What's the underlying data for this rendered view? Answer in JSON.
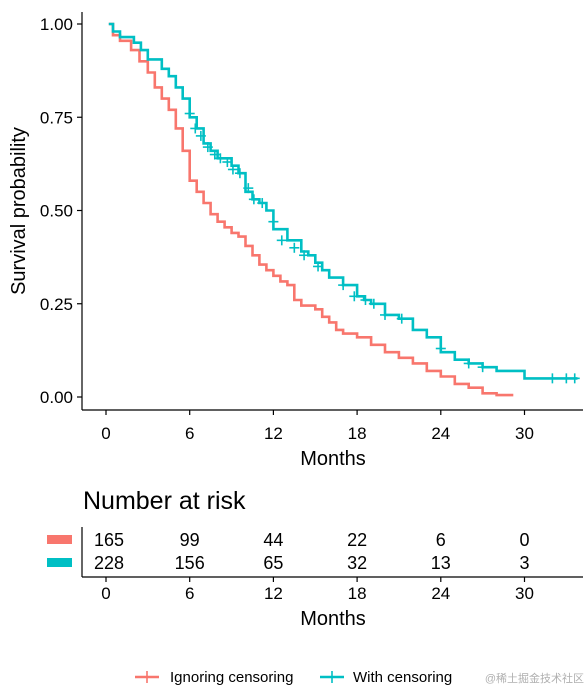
{
  "chart_data": {
    "type": "line",
    "xlabel": "Months",
    "ylabel": "Survival probability",
    "xlim": [
      0,
      34
    ],
    "ylim": [
      0,
      1
    ],
    "x_ticks": [
      0,
      6,
      12,
      18,
      24,
      30
    ],
    "y_ticks": [
      "0.00",
      "0.25",
      "0.50",
      "0.75",
      "1.00"
    ],
    "grid": false,
    "legend_position": "bottom",
    "series": [
      {
        "name": "Ignoring censoring",
        "color": "#F8766D",
        "points": [
          [
            0.2,
            1.0
          ],
          [
            0.5,
            0.97
          ],
          [
            1.0,
            0.955
          ],
          [
            1.8,
            0.93
          ],
          [
            2.4,
            0.9
          ],
          [
            3.0,
            0.87
          ],
          [
            3.5,
            0.83
          ],
          [
            4.0,
            0.8
          ],
          [
            4.5,
            0.77
          ],
          [
            5.0,
            0.72
          ],
          [
            5.5,
            0.66
          ],
          [
            6.0,
            0.58
          ],
          [
            6.5,
            0.55
          ],
          [
            7.0,
            0.52
          ],
          [
            7.5,
            0.49
          ],
          [
            8.0,
            0.47
          ],
          [
            8.5,
            0.455
          ],
          [
            9.0,
            0.44
          ],
          [
            9.5,
            0.43
          ],
          [
            10.0,
            0.405
          ],
          [
            10.5,
            0.38
          ],
          [
            11.0,
            0.355
          ],
          [
            11.5,
            0.34
          ],
          [
            12.0,
            0.325
          ],
          [
            12.5,
            0.31
          ],
          [
            13.0,
            0.3
          ],
          [
            13.5,
            0.26
          ],
          [
            14.0,
            0.245
          ],
          [
            15.0,
            0.235
          ],
          [
            15.5,
            0.215
          ],
          [
            16.0,
            0.2
          ],
          [
            16.5,
            0.18
          ],
          [
            17.0,
            0.17
          ],
          [
            18.0,
            0.16
          ],
          [
            19.0,
            0.14
          ],
          [
            20.0,
            0.12
          ],
          [
            21.0,
            0.105
          ],
          [
            22.0,
            0.09
          ],
          [
            23.0,
            0.07
          ],
          [
            24.0,
            0.055
          ],
          [
            25.0,
            0.035
          ],
          [
            26.0,
            0.025
          ],
          [
            27.0,
            0.01
          ],
          [
            28.0,
            0.005
          ],
          [
            29.2,
            0.005
          ]
        ]
      },
      {
        "name": "With censoring",
        "color": "#00BFC4",
        "points": [
          [
            0.2,
            1.0
          ],
          [
            0.5,
            0.98
          ],
          [
            1.0,
            0.965
          ],
          [
            2.0,
            0.95
          ],
          [
            2.5,
            0.93
          ],
          [
            3.0,
            0.905
          ],
          [
            4.0,
            0.88
          ],
          [
            4.5,
            0.86
          ],
          [
            5.0,
            0.83
          ],
          [
            5.5,
            0.8
          ],
          [
            6.0,
            0.75
          ],
          [
            6.5,
            0.72
          ],
          [
            7.0,
            0.68
          ],
          [
            7.5,
            0.66
          ],
          [
            8.0,
            0.64
          ],
          [
            9.0,
            0.62
          ],
          [
            9.5,
            0.6
          ],
          [
            10.0,
            0.55
          ],
          [
            10.5,
            0.53
          ],
          [
            11.0,
            0.52
          ],
          [
            11.5,
            0.5
          ],
          [
            12.0,
            0.45
          ],
          [
            13.0,
            0.42
          ],
          [
            14.0,
            0.39
          ],
          [
            14.5,
            0.38
          ],
          [
            15.0,
            0.36
          ],
          [
            15.5,
            0.34
          ],
          [
            16.0,
            0.32
          ],
          [
            17.0,
            0.3
          ],
          [
            18.0,
            0.27
          ],
          [
            18.5,
            0.26
          ],
          [
            19.0,
            0.25
          ],
          [
            20.0,
            0.22
          ],
          [
            21.0,
            0.21
          ],
          [
            22.0,
            0.18
          ],
          [
            23.0,
            0.16
          ],
          [
            24.0,
            0.12
          ],
          [
            25.0,
            0.1
          ],
          [
            26.0,
            0.09
          ],
          [
            27.0,
            0.08
          ],
          [
            28.0,
            0.07
          ],
          [
            29.0,
            0.07
          ],
          [
            30.0,
            0.05
          ],
          [
            31.5,
            0.05
          ],
          [
            33.8,
            0.05
          ]
        ],
        "censor_marks": [
          [
            6.0,
            0.76
          ],
          [
            6.4,
            0.72
          ],
          [
            6.8,
            0.7
          ],
          [
            7.3,
            0.67
          ],
          [
            7.8,
            0.65
          ],
          [
            8.2,
            0.64
          ],
          [
            8.7,
            0.63
          ],
          [
            9.1,
            0.61
          ],
          [
            9.6,
            0.6
          ],
          [
            10.2,
            0.56
          ],
          [
            10.6,
            0.53
          ],
          [
            11.2,
            0.52
          ],
          [
            12.0,
            0.47
          ],
          [
            12.6,
            0.42
          ],
          [
            13.5,
            0.4
          ],
          [
            14.2,
            0.38
          ],
          [
            15.2,
            0.35
          ],
          [
            17.0,
            0.3
          ],
          [
            17.8,
            0.27
          ],
          [
            18.6,
            0.26
          ],
          [
            19.2,
            0.25
          ],
          [
            20.0,
            0.22
          ],
          [
            21.2,
            0.21
          ],
          [
            24.0,
            0.13
          ],
          [
            26.0,
            0.09
          ],
          [
            27.0,
            0.08
          ],
          [
            32.0,
            0.05
          ],
          [
            33.0,
            0.05
          ],
          [
            33.6,
            0.05
          ]
        ]
      }
    ],
    "risk_table": {
      "title": "Number at risk",
      "xlabel": "Months",
      "times": [
        0,
        6,
        12,
        18,
        24,
        30
      ],
      "rows": [
        {
          "series": "Ignoring censoring",
          "color": "#F8766D",
          "values": [
            "165",
            "99",
            "44",
            "22",
            "6",
            "0"
          ]
        },
        {
          "series": "With censoring",
          "color": "#00BFC4",
          "values": [
            "228",
            "156",
            "65",
            "32",
            "13",
            "3"
          ]
        }
      ]
    }
  },
  "watermark": "@稀土掘金技术社区"
}
